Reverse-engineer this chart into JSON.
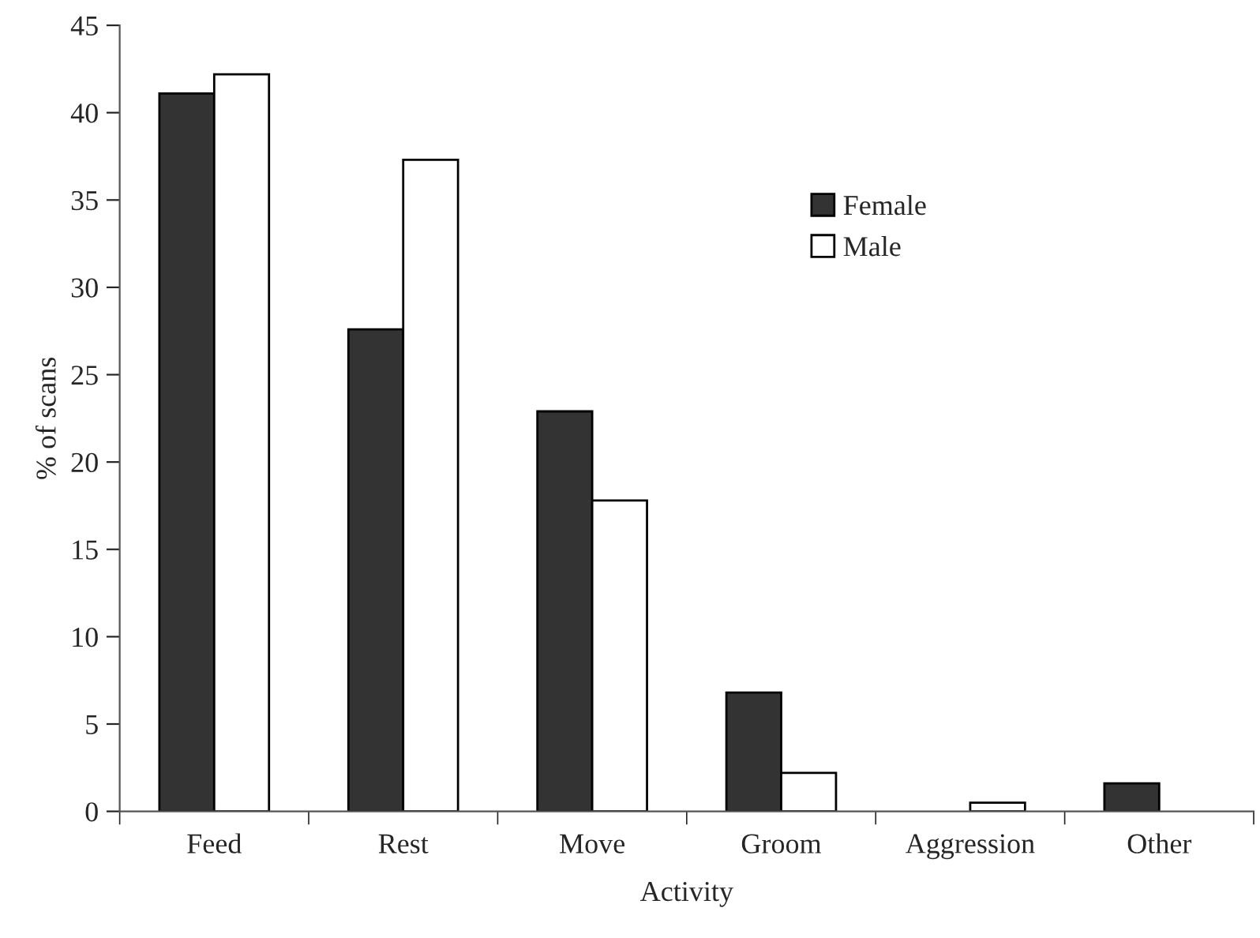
{
  "chart_data": {
    "type": "bar",
    "xlabel": "Activity",
    "ylabel": "% of scans",
    "categories": [
      "Feed",
      "Rest",
      "Move",
      "Groom",
      "Aggression",
      "Other"
    ],
    "series": [
      {
        "name": "Female",
        "color": "#333333",
        "values": [
          41.1,
          27.6,
          22.9,
          6.8,
          null,
          1.6
        ]
      },
      {
        "name": "Male",
        "color": "#ffffff",
        "values": [
          42.2,
          37.3,
          17.8,
          2.2,
          0.5,
          null
        ]
      }
    ],
    "ylim": [
      0,
      45
    ],
    "yticks": [
      0,
      5,
      10,
      15,
      20,
      25,
      30,
      35,
      40,
      45
    ],
    "grid": false,
    "legend": "right"
  }
}
